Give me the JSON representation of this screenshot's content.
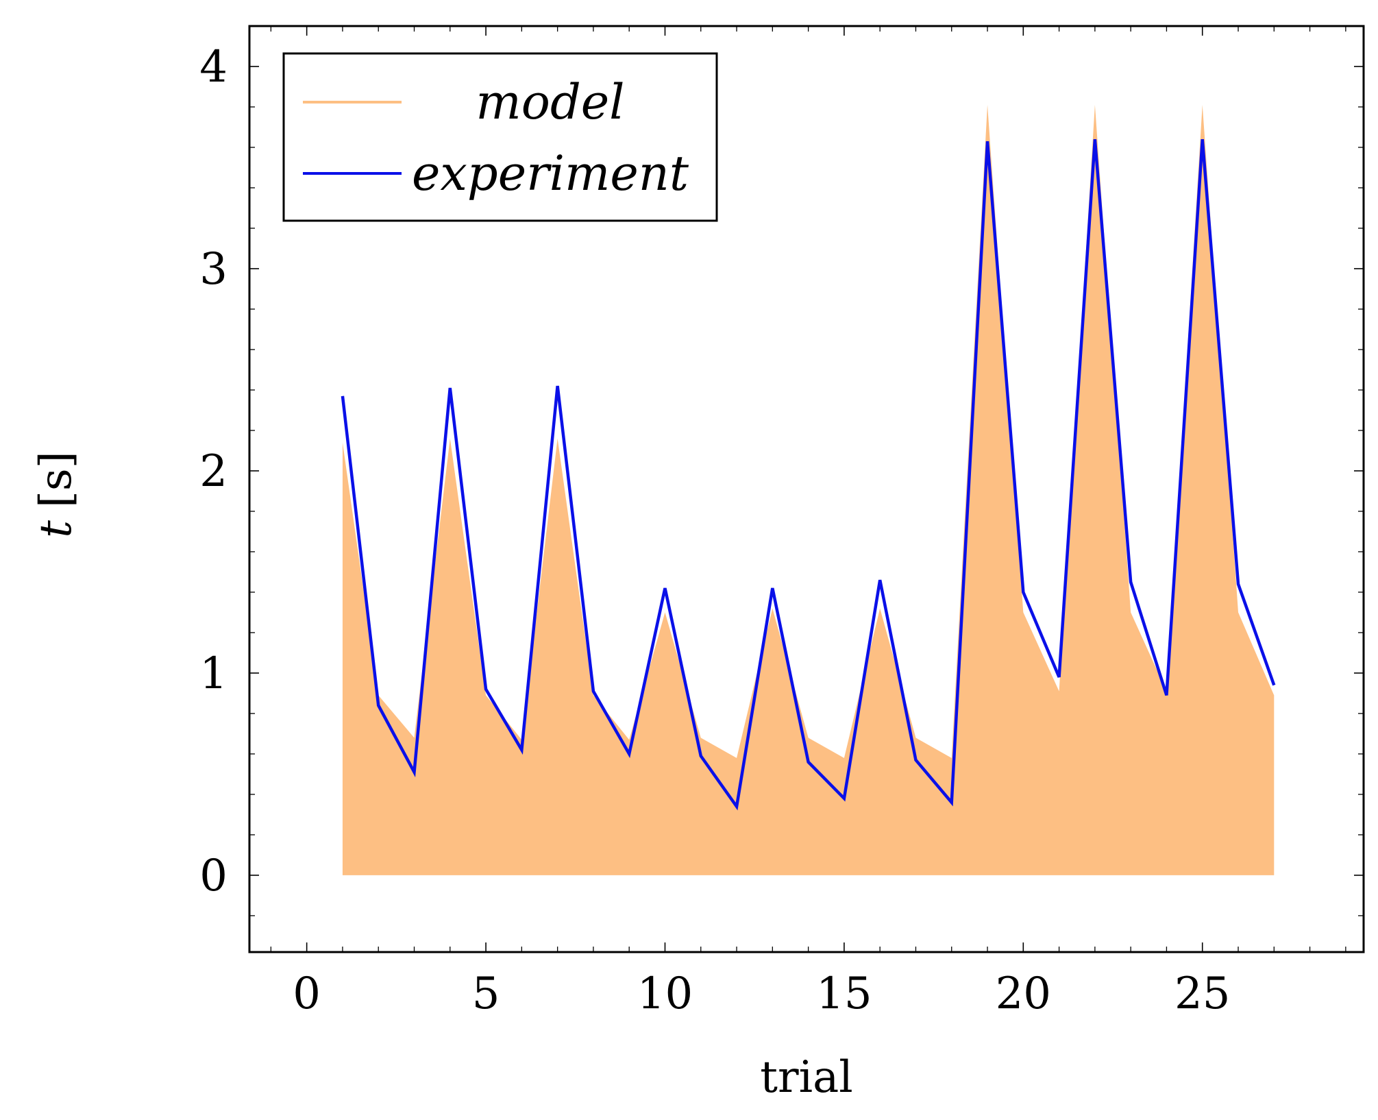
{
  "chart_data": {
    "type": "area",
    "title": "",
    "xlabel": "trial",
    "ylabel": "[s]",
    "ylabel_symbol": "t",
    "xlim": [
      -1.6,
      29.5
    ],
    "ylim": [
      -0.38,
      4.2
    ],
    "xticks": [
      0,
      5,
      10,
      15,
      20,
      25
    ],
    "xtick_labels": [
      "0",
      "5",
      "10",
      "15",
      "20",
      "25"
    ],
    "yticks": [
      0,
      1,
      2,
      3,
      4
    ],
    "ytick_labels": [
      "0",
      "1",
      "2",
      "3",
      "4"
    ],
    "legend_position": "top-left",
    "x": [
      1,
      2,
      3,
      4,
      5,
      6,
      7,
      8,
      9,
      10,
      11,
      12,
      13,
      14,
      15,
      16,
      17,
      18,
      19,
      20,
      21,
      22,
      23,
      24,
      25,
      26,
      27
    ],
    "series": [
      {
        "name": "model",
        "style": "filled-area",
        "color": "#fdbf83",
        "values": [
          2.14,
          0.89,
          0.68,
          2.16,
          0.89,
          0.67,
          2.16,
          0.89,
          0.67,
          1.3,
          0.68,
          0.58,
          1.32,
          0.68,
          0.58,
          1.32,
          0.68,
          0.58,
          3.81,
          1.3,
          0.91,
          3.81,
          1.3,
          0.91,
          3.81,
          1.3,
          0.89
        ]
      },
      {
        "name": "experiment",
        "style": "line",
        "color": "#0a10e8",
        "values": [
          2.37,
          0.84,
          0.51,
          2.41,
          0.92,
          0.62,
          2.42,
          0.91,
          0.6,
          1.42,
          0.59,
          0.34,
          1.42,
          0.56,
          0.38,
          1.46,
          0.57,
          0.36,
          3.63,
          1.4,
          0.98,
          3.64,
          1.45,
          0.89,
          3.64,
          1.44,
          0.94
        ]
      }
    ]
  }
}
